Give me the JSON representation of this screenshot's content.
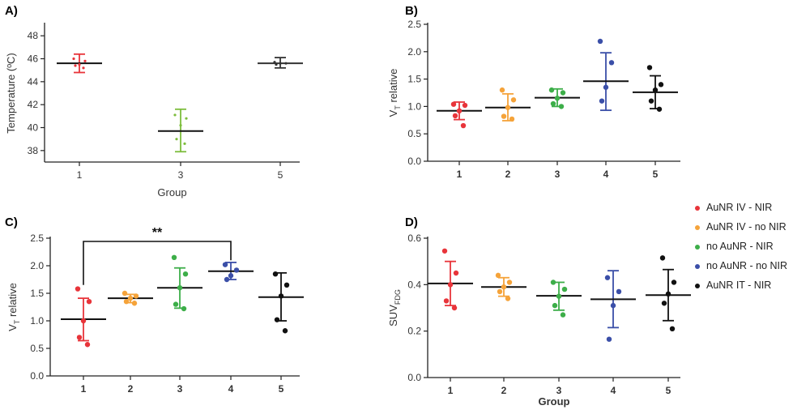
{
  "chart_data": [
    {
      "panel_label": "A)",
      "type": "scatter",
      "xlabel": "Group",
      "ylabel": "Temperature (ºC)",
      "ylim": [
        37,
        49
      ],
      "yticks": [
        38,
        40,
        42,
        44,
        46,
        48
      ],
      "categories": [
        "1",
        "3",
        "5"
      ],
      "series": [
        {
          "color": "#e8343a",
          "mean": 45.6,
          "err_low": 44.8,
          "err_high": 46.4,
          "points": [
            46.0,
            45.8,
            45.5,
            45.4,
            45.2
          ]
        },
        {
          "color": "#7dbd3c",
          "mean": 39.7,
          "err_low": 37.9,
          "err_high": 41.6,
          "points": [
            41.1,
            40.8,
            40.2,
            39.0,
            38.6
          ]
        },
        {
          "color": "#333333",
          "mean": 45.6,
          "err_low": 45.2,
          "err_high": 46.1,
          "points": [
            45.7,
            45.6,
            45.6,
            45.5
          ]
        }
      ]
    },
    {
      "panel_label": "B)",
      "type": "scatter",
      "xlabel": "",
      "ylabel": "VT relative",
      "ylim": [
        0,
        2.5
      ],
      "yticks": [
        0.0,
        0.5,
        1.0,
        1.5,
        2.0,
        2.5
      ],
      "categories": [
        "1",
        "2",
        "3",
        "4",
        "5"
      ],
      "series": [
        {
          "color": "#e8343a",
          "mean": 0.92,
          "err_low": 0.76,
          "err_high": 1.08,
          "points": [
            1.04,
            1.02,
            0.92,
            0.83,
            0.65
          ]
        },
        {
          "color": "#f5a33a",
          "mean": 0.98,
          "err_low": 0.74,
          "err_high": 1.23,
          "points": [
            1.3,
            1.12,
            0.98,
            0.82,
            0.77
          ]
        },
        {
          "color": "#3dae49",
          "mean": 1.16,
          "err_low": 1.0,
          "err_high": 1.32,
          "points": [
            1.3,
            1.25,
            1.15,
            1.05,
            1.0
          ]
        },
        {
          "color": "#3b4fa8",
          "mean": 1.46,
          "err_low": 0.93,
          "err_high": 1.98,
          "points": [
            2.19,
            1.8,
            1.35,
            1.1
          ]
        },
        {
          "color": "#111111",
          "mean": 1.26,
          "err_low": 0.96,
          "err_high": 1.56,
          "points": [
            1.71,
            1.4,
            1.3,
            1.1,
            0.95
          ]
        }
      ]
    },
    {
      "panel_label": "C)",
      "type": "scatter",
      "xlabel": "",
      "ylabel": "VT relative",
      "ylim": [
        0,
        2.5
      ],
      "yticks": [
        0.0,
        0.5,
        1.0,
        1.5,
        2.0,
        2.5
      ],
      "categories": [
        "1",
        "2",
        "3",
        "4",
        "5"
      ],
      "annotation": "**",
      "series": [
        {
          "color": "#e8343a",
          "mean": 1.03,
          "err_low": 0.64,
          "err_high": 1.41,
          "points": [
            1.58,
            1.35,
            1.0,
            0.7,
            0.57
          ]
        },
        {
          "color": "#f5a33a",
          "mean": 1.41,
          "err_low": 1.33,
          "err_high": 1.48,
          "points": [
            1.5,
            1.45,
            1.41,
            1.35,
            1.32
          ]
        },
        {
          "color": "#3dae49",
          "mean": 1.6,
          "err_low": 1.23,
          "err_high": 1.96,
          "points": [
            2.15,
            1.85,
            1.6,
            1.3,
            1.22
          ]
        },
        {
          "color": "#3b4fa8",
          "mean": 1.9,
          "err_low": 1.75,
          "err_high": 2.06,
          "points": [
            2.02,
            1.92,
            1.82,
            1.75
          ]
        },
        {
          "color": "#111111",
          "mean": 1.43,
          "err_low": 1.0,
          "err_high": 1.87,
          "points": [
            1.85,
            1.65,
            1.45,
            1.02,
            0.82
          ]
        }
      ]
    },
    {
      "panel_label": "D)",
      "type": "scatter",
      "xlabel": "Group",
      "ylabel": "SUVFDG",
      "ylim": [
        0,
        0.6
      ],
      "yticks": [
        0.0,
        0.2,
        0.4,
        0.6
      ],
      "categories": [
        "1",
        "2",
        "3",
        "4",
        "5"
      ],
      "series": [
        {
          "color": "#e8343a",
          "mean": 0.405,
          "err_low": 0.31,
          "err_high": 0.5,
          "points": [
            0.545,
            0.45,
            0.4,
            0.33,
            0.3
          ]
        },
        {
          "color": "#f5a33a",
          "mean": 0.39,
          "err_low": 0.35,
          "err_high": 0.43,
          "points": [
            0.44,
            0.41,
            0.39,
            0.37,
            0.34
          ]
        },
        {
          "color": "#3dae49",
          "mean": 0.352,
          "err_low": 0.29,
          "err_high": 0.41,
          "points": [
            0.41,
            0.38,
            0.35,
            0.31,
            0.27
          ]
        },
        {
          "color": "#3b4fa8",
          "mean": 0.337,
          "err_low": 0.215,
          "err_high": 0.46,
          "points": [
            0.43,
            0.37,
            0.31,
            0.165
          ]
        },
        {
          "color": "#111111",
          "mean": 0.355,
          "err_low": 0.245,
          "err_high": 0.465,
          "points": [
            0.515,
            0.41,
            0.36,
            0.32,
            0.21
          ]
        }
      ]
    }
  ],
  "legend": [
    {
      "label": "AuNR IV - NIR",
      "color": "#e8343a"
    },
    {
      "label": "AuNR IV - no NIR",
      "color": "#f5a33a"
    },
    {
      "label": "no AuNR - NIR",
      "color": "#3dae49"
    },
    {
      "label": "no AuNR - no NIR",
      "color": "#3b4fa8"
    },
    {
      "label": "AuNR IT - NIR",
      "color": "#111111"
    }
  ]
}
